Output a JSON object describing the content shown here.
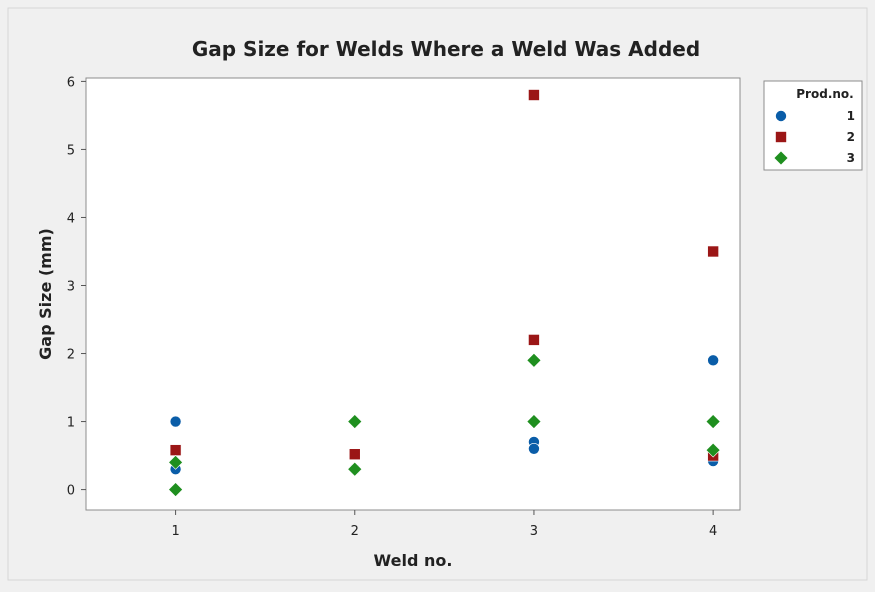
{
  "chart_data": {
    "type": "scatter",
    "title": "Gap Size for Welds Where a Weld Was Added",
    "xlabel": "Weld no.",
    "ylabel": "Gap Size (mm)",
    "xlim": [
      0.5,
      4.15
    ],
    "ylim": [
      -0.3,
      6.05
    ],
    "xticks": [
      1,
      2,
      3,
      4
    ],
    "yticks": [
      0,
      1,
      2,
      3,
      4,
      5,
      6
    ],
    "grid": false,
    "legend": {
      "title": "Prod.no.",
      "position": "right"
    },
    "series": [
      {
        "name": "1",
        "marker": "circle",
        "color": "#0a5da8",
        "points": [
          [
            1,
            1.0
          ],
          [
            1,
            0.3
          ],
          [
            2,
            0.3
          ],
          [
            3,
            0.7
          ],
          [
            3,
            0.6
          ],
          [
            4,
            1.9
          ],
          [
            4,
            0.42
          ]
        ]
      },
      {
        "name": "2",
        "marker": "square",
        "color": "#9b1616",
        "points": [
          [
            1,
            0.58
          ],
          [
            2,
            0.52
          ],
          [
            3,
            5.8
          ],
          [
            3,
            2.2
          ],
          [
            4,
            3.5
          ],
          [
            4,
            0.5
          ]
        ]
      },
      {
        "name": "3",
        "marker": "diamond",
        "color": "#1f8f1f",
        "points": [
          [
            1,
            0.4
          ],
          [
            1,
            0.0
          ],
          [
            2,
            1.0
          ],
          [
            2,
            0.3
          ],
          [
            3,
            1.9
          ],
          [
            3,
            1.0
          ],
          [
            4,
            1.0
          ],
          [
            4,
            0.58
          ]
        ]
      }
    ]
  }
}
